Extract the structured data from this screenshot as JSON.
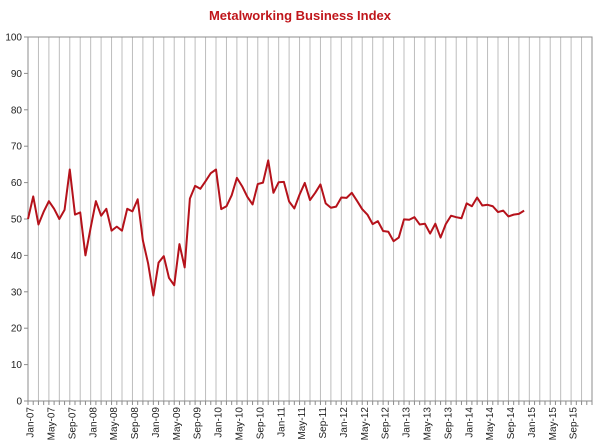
{
  "chart_data": {
    "type": "line",
    "title": "Metalworking Business Index",
    "xlabel": "",
    "ylabel": "",
    "ylim": [
      0,
      100
    ],
    "yticks": [
      0,
      10,
      20,
      30,
      40,
      50,
      60,
      70,
      80,
      90,
      100
    ],
    "x_range": [
      "2007-01",
      "2015-12"
    ],
    "xtick_labels": [
      "Jan-07",
      "May-07",
      "Sep-07",
      "Jan-08",
      "May-08",
      "Sep-08",
      "Jan-09",
      "May-09",
      "Sep-09",
      "Jan-10",
      "May-10",
      "Sep-10",
      "Jan-11",
      "May-11",
      "Sep-11",
      "Jan-12",
      "May-12",
      "Sep-12",
      "Jan-13",
      "May-13",
      "Sep-13",
      "Jan-14",
      "May-14",
      "Sep-14",
      "Jan-15",
      "May-15",
      "Sep-15"
    ],
    "grid": "vertical",
    "line_color": "#b5121b",
    "series": [
      {
        "x": [
          "2007-01",
          "2007-02",
          "2007-03",
          "2007-04",
          "2007-05",
          "2007-06",
          "2007-07",
          "2007-08",
          "2007-09",
          "2007-10",
          "2007-11",
          "2007-12",
          "2008-01",
          "2008-02",
          "2008-03",
          "2008-04",
          "2008-05",
          "2008-06",
          "2008-07",
          "2008-08",
          "2008-09",
          "2008-10",
          "2008-11",
          "2008-12",
          "2009-01",
          "2009-02",
          "2009-03",
          "2009-04",
          "2009-05",
          "2009-06",
          "2009-07",
          "2009-08",
          "2009-09",
          "2009-10",
          "2009-11",
          "2009-12",
          "2010-01",
          "2010-02",
          "2010-03",
          "2010-04",
          "2010-05",
          "2010-06",
          "2010-07",
          "2010-08",
          "2010-09",
          "2010-10",
          "2010-11",
          "2010-12",
          "2011-01",
          "2011-02",
          "2011-03",
          "2011-04",
          "2011-05",
          "2011-06",
          "2011-07",
          "2011-08",
          "2011-09",
          "2011-10",
          "2011-11",
          "2011-12",
          "2012-01",
          "2012-02",
          "2012-03",
          "2012-04",
          "2012-05",
          "2012-06",
          "2012-07",
          "2012-08",
          "2012-09",
          "2012-10",
          "2012-11",
          "2012-12",
          "2013-01",
          "2013-02",
          "2013-03",
          "2013-04",
          "2013-05",
          "2013-06",
          "2013-07",
          "2013-08",
          "2013-09",
          "2013-10",
          "2013-11",
          "2013-12",
          "2014-01",
          "2014-02",
          "2014-03",
          "2014-04",
          "2014-05",
          "2014-06",
          "2014-07",
          "2014-08",
          "2014-09",
          "2014-10",
          "2014-11",
          "2014-12"
        ],
        "values": [
          50.0,
          56.2,
          48.5,
          52.0,
          54.9,
          52.8,
          50.0,
          52.5,
          63.6,
          51.2,
          51.8,
          40.0,
          47.6,
          54.9,
          50.9,
          52.8,
          46.8,
          47.9,
          46.8,
          52.8,
          52.1,
          55.4,
          44.1,
          37.8,
          29.0,
          38.0,
          39.8,
          33.8,
          31.8,
          43.1,
          36.7,
          55.6,
          59.1,
          58.3,
          60.4,
          62.6,
          63.6,
          52.7,
          53.5,
          56.5,
          61.3,
          59.0,
          56.1,
          54.0,
          59.6,
          60.0,
          66.1,
          57.2,
          60.1,
          60.2,
          54.8,
          52.9,
          56.7,
          59.9,
          55.2,
          57.2,
          59.5,
          54.3,
          53.1,
          53.4,
          55.9,
          55.8,
          57.2,
          55.0,
          52.7,
          51.2,
          48.6,
          49.4,
          46.7,
          46.5,
          43.9,
          44.9,
          49.9,
          49.8,
          50.5,
          48.5,
          48.7,
          46.0,
          48.7,
          44.9,
          48.6,
          50.9,
          50.5,
          50.2,
          54.3,
          53.5,
          55.9,
          53.7,
          53.9,
          53.5,
          51.9,
          52.3,
          50.7,
          51.2,
          51.4,
          52.3
        ]
      }
    ]
  }
}
